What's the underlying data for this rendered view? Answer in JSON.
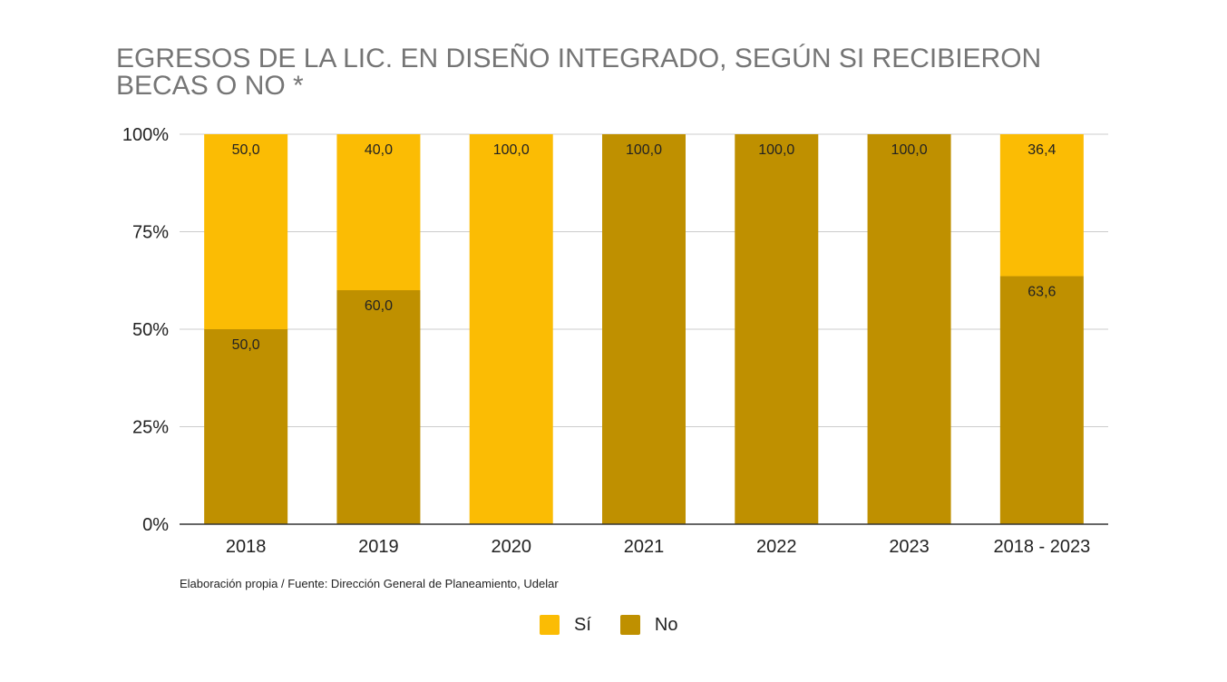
{
  "chart_data": {
    "type": "bar",
    "stacked": true,
    "title": "EGRESOS DE LA LIC. EN DISEÑO INTEGRADO, SEGÚN SI RECIBIERON BECAS O NO *",
    "categories": [
      "2018",
      "2019",
      "2020",
      "2021",
      "2022",
      "2023",
      "2018 - 2023"
    ],
    "series": [
      {
        "name": "No",
        "color": "#bf9000",
        "values": [
          50.0,
          60.0,
          0,
          100.0,
          100.0,
          100.0,
          63.6
        ],
        "labels": [
          "50,0",
          "60,0",
          "",
          "100,0",
          "100,0",
          "100,0",
          "63,6"
        ]
      },
      {
        "name": "Sí",
        "color": "#fbbc04",
        "values": [
          50.0,
          40.0,
          100.0,
          0,
          0,
          0,
          36.4
        ],
        "labels": [
          "50,0",
          "40,0",
          "100,0",
          "",
          "",
          "",
          "36,4"
        ]
      }
    ],
    "ylim": [
      0,
      100
    ],
    "yticks": [
      "0%",
      "25%",
      "50%",
      "75%",
      "100%"
    ],
    "grid": true,
    "legend_position": "bottom",
    "source": "Elaboración propia / Fuente: Dirección General de Planeamiento, Udelar"
  }
}
